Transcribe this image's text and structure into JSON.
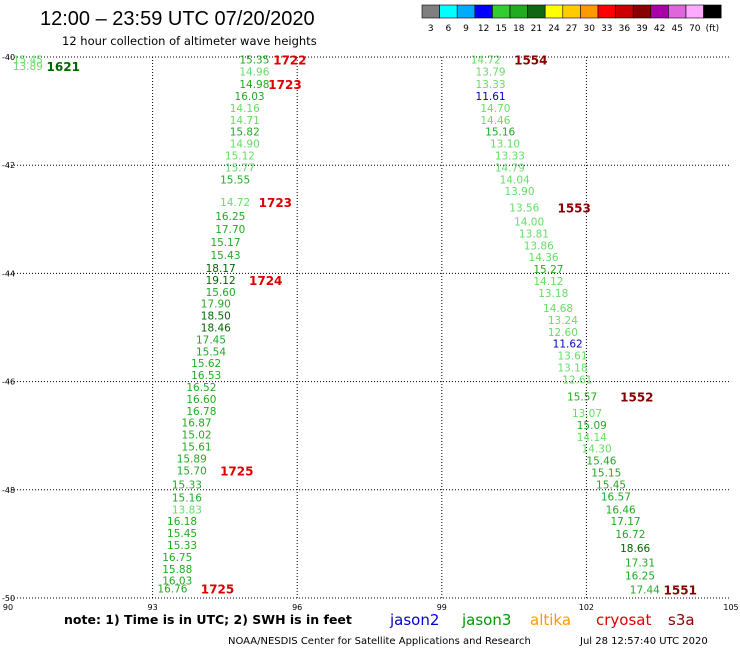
{
  "header": {
    "title": "12:00 – 23:59 UTC 07/20/2020",
    "subtitle": "12 hour collection of altimeter wave heights"
  },
  "colorbar": {
    "colors": [
      "#7f7f7f",
      "#00ffff",
      "#00aaff",
      "#0000ff",
      "#33cc33",
      "#22aa22",
      "#116611",
      "#ffff00",
      "#ffcc00",
      "#ff9900",
      "#ff0000",
      "#cc0000",
      "#880000",
      "#aa00aa",
      "#dd66dd",
      "#ffaaff",
      "#000000"
    ],
    "labels": [
      "3",
      "6",
      "9",
      "12",
      "15",
      "18",
      "21",
      "24",
      "27",
      "30",
      "33",
      "36",
      "39",
      "42",
      "45",
      "70",
      "(ft)"
    ]
  },
  "footer": {
    "note": "note: 1) Time is in UTC; 2) SWH is in feet",
    "missions": [
      {
        "name": "jason2",
        "color": "#0000cc"
      },
      {
        "name": "jason3",
        "color": "#009900"
      },
      {
        "name": "altika",
        "color": "#ff9900"
      },
      {
        "name": "cryosat",
        "color": "#dd0000"
      },
      {
        "name": "s3a",
        "color": "#880000"
      }
    ],
    "credit": "NOAA/NESDIS Center for Satellite Applications and Research",
    "timestamp": "Jul 28 12:57:40 UTC 2020"
  },
  "chart_data": {
    "type": "scatter",
    "xlim": [
      90,
      105
    ],
    "ylim": [
      -50,
      -40
    ],
    "xticks": [
      90,
      93,
      96,
      99,
      102,
      105
    ],
    "yticks": [
      -40,
      -42,
      -44,
      -46,
      -48,
      -50
    ],
    "grid": true,
    "track_colors": {
      "light": "#66dd66",
      "green": "#22aa22",
      "dark": "#006600",
      "blue": "#0000cc"
    },
    "tracks": [
      {
        "name": "west",
        "points": [
          {
            "lon": 90.1,
            "lat": -40.05,
            "v": "15.45",
            "c": "light"
          },
          {
            "lon": 90.1,
            "lat": -40.17,
            "v": "13.89",
            "c": "light"
          },
          {
            "lon": 94.8,
            "lat": -40.05,
            "v": "15.35",
            "c": "green"
          },
          {
            "lon": 94.8,
            "lat": -40.27,
            "v": "14.96",
            "c": "light"
          },
          {
            "lon": 94.8,
            "lat": -40.5,
            "v": "14.98",
            "c": "green"
          },
          {
            "lon": 94.7,
            "lat": -40.72,
            "v": "16.03",
            "c": "green"
          },
          {
            "lon": 94.6,
            "lat": -40.94,
            "v": "14.16",
            "c": "light"
          },
          {
            "lon": 94.6,
            "lat": -41.16,
            "v": "14.71",
            "c": "light"
          },
          {
            "lon": 94.6,
            "lat": -41.38,
            "v": "15.82",
            "c": "green"
          },
          {
            "lon": 94.6,
            "lat": -41.6,
            "v": "14.90",
            "c": "light"
          },
          {
            "lon": 94.5,
            "lat": -41.82,
            "v": "15.12",
            "c": "light"
          },
          {
            "lon": 94.5,
            "lat": -42.04,
            "v": "15.77",
            "c": "light"
          },
          {
            "lon": 94.4,
            "lat": -42.26,
            "v": "15.55",
            "c": "green"
          },
          {
            "lon": 94.4,
            "lat": -42.68,
            "v": "14.72",
            "c": "light"
          },
          {
            "lon": 94.3,
            "lat": -42.94,
            "v": "16.25",
            "c": "green"
          },
          {
            "lon": 94.3,
            "lat": -43.18,
            "v": "17.70",
            "c": "green"
          },
          {
            "lon": 94.2,
            "lat": -43.42,
            "v": "15.17",
            "c": "green"
          },
          {
            "lon": 94.2,
            "lat": -43.66,
            "v": "15.43",
            "c": "green"
          },
          {
            "lon": 94.1,
            "lat": -43.9,
            "v": "18.17",
            "c": "dark"
          },
          {
            "lon": 94.1,
            "lat": -44.12,
            "v": "19.12",
            "c": "dark"
          },
          {
            "lon": 94.1,
            "lat": -44.34,
            "v": "15.60",
            "c": "green"
          },
          {
            "lon": 94.0,
            "lat": -44.56,
            "v": "17.90",
            "c": "green"
          },
          {
            "lon": 94.0,
            "lat": -44.78,
            "v": "18.50",
            "c": "dark"
          },
          {
            "lon": 94.0,
            "lat": -45.0,
            "v": "18.46",
            "c": "dark"
          },
          {
            "lon": 93.9,
            "lat": -45.22,
            "v": "17.45",
            "c": "green"
          },
          {
            "lon": 93.9,
            "lat": -45.44,
            "v": "15.54",
            "c": "green"
          },
          {
            "lon": 93.8,
            "lat": -45.66,
            "v": "15.62",
            "c": "green"
          },
          {
            "lon": 93.8,
            "lat": -45.88,
            "v": "16.53",
            "c": "green"
          },
          {
            "lon": 93.7,
            "lat": -46.1,
            "v": "16.52",
            "c": "green"
          },
          {
            "lon": 93.7,
            "lat": -46.32,
            "v": "16.60",
            "c": "green"
          },
          {
            "lon": 93.7,
            "lat": -46.54,
            "v": "16.78",
            "c": "green"
          },
          {
            "lon": 93.6,
            "lat": -46.76,
            "v": "16.87",
            "c": "green"
          },
          {
            "lon": 93.6,
            "lat": -46.98,
            "v": "15.02",
            "c": "green"
          },
          {
            "lon": 93.6,
            "lat": -47.2,
            "v": "15.61",
            "c": "green"
          },
          {
            "lon": 93.5,
            "lat": -47.42,
            "v": "15.89",
            "c": "green"
          },
          {
            "lon": 93.5,
            "lat": -47.64,
            "v": "15.70",
            "c": "green"
          },
          {
            "lon": 93.4,
            "lat": -47.9,
            "v": "15.33",
            "c": "green"
          },
          {
            "lon": 93.4,
            "lat": -48.14,
            "v": "15.16",
            "c": "green"
          },
          {
            "lon": 93.4,
            "lat": -48.36,
            "v": "13.83",
            "c": "light"
          },
          {
            "lon": 93.3,
            "lat": -48.58,
            "v": "16.18",
            "c": "green"
          },
          {
            "lon": 93.3,
            "lat": -48.8,
            "v": "15.45",
            "c": "green"
          },
          {
            "lon": 93.3,
            "lat": -49.02,
            "v": "15.33",
            "c": "green"
          },
          {
            "lon": 93.2,
            "lat": -49.24,
            "v": "16.75",
            "c": "green"
          },
          {
            "lon": 93.2,
            "lat": -49.46,
            "v": "15.88",
            "c": "green"
          },
          {
            "lon": 93.2,
            "lat": -49.68,
            "v": "16.03",
            "c": "green"
          },
          {
            "lon": 93.1,
            "lat": -49.82,
            "v": "16.76",
            "c": "green"
          }
        ]
      },
      {
        "name": "east",
        "points": [
          {
            "lon": 99.6,
            "lat": -40.05,
            "v": "14.72",
            "c": "light"
          },
          {
            "lon": 99.7,
            "lat": -40.27,
            "v": "13.79",
            "c": "light"
          },
          {
            "lon": 99.7,
            "lat": -40.5,
            "v": "13.33",
            "c": "light"
          },
          {
            "lon": 99.7,
            "lat": -40.72,
            "v": "11.61",
            "c": "blue"
          },
          {
            "lon": 99.8,
            "lat": -40.94,
            "v": "14.70",
            "c": "light"
          },
          {
            "lon": 99.8,
            "lat": -41.16,
            "v": "14.46",
            "c": "light"
          },
          {
            "lon": 99.9,
            "lat": -41.38,
            "v": "15.16",
            "c": "green"
          },
          {
            "lon": 100.0,
            "lat": -41.6,
            "v": "13.10",
            "c": "light"
          },
          {
            "lon": 100.1,
            "lat": -41.82,
            "v": "13.33",
            "c": "light"
          },
          {
            "lon": 100.1,
            "lat": -42.04,
            "v": "14.79",
            "c": "light"
          },
          {
            "lon": 100.2,
            "lat": -42.26,
            "v": "14.04",
            "c": "light"
          },
          {
            "lon": 100.3,
            "lat": -42.48,
            "v": "13.90",
            "c": "light"
          },
          {
            "lon": 100.4,
            "lat": -42.78,
            "v": "13.56",
            "c": "light"
          },
          {
            "lon": 100.5,
            "lat": -43.04,
            "v": "14.00",
            "c": "light"
          },
          {
            "lon": 100.6,
            "lat": -43.26,
            "v": "13.81",
            "c": "light"
          },
          {
            "lon": 100.7,
            "lat": -43.48,
            "v": "13.86",
            "c": "light"
          },
          {
            "lon": 100.8,
            "lat": -43.7,
            "v": "14.36",
            "c": "light"
          },
          {
            "lon": 100.9,
            "lat": -43.92,
            "v": "15.27",
            "c": "green"
          },
          {
            "lon": 100.9,
            "lat": -44.14,
            "v": "14.12",
            "c": "light"
          },
          {
            "lon": 101.0,
            "lat": -44.36,
            "v": "13.18",
            "c": "light"
          },
          {
            "lon": 101.1,
            "lat": -44.64,
            "v": "14.68",
            "c": "light"
          },
          {
            "lon": 101.2,
            "lat": -44.86,
            "v": "13.24",
            "c": "light"
          },
          {
            "lon": 101.2,
            "lat": -45.08,
            "v": "12.60",
            "c": "light"
          },
          {
            "lon": 101.3,
            "lat": -45.3,
            "v": "11.62",
            "c": "blue"
          },
          {
            "lon": 101.4,
            "lat": -45.52,
            "v": "13.61",
            "c": "light"
          },
          {
            "lon": 101.4,
            "lat": -45.74,
            "v": "13.18",
            "c": "light"
          },
          {
            "lon": 101.5,
            "lat": -45.96,
            "v": "12.61",
            "c": "light"
          },
          {
            "lon": 101.6,
            "lat": -46.28,
            "v": "15.57",
            "c": "green"
          },
          {
            "lon": 101.7,
            "lat": -46.58,
            "v": "13.07",
            "c": "light"
          },
          {
            "lon": 101.8,
            "lat": -46.8,
            "v": "15.09",
            "c": "green"
          },
          {
            "lon": 101.8,
            "lat": -47.02,
            "v": "14.14",
            "c": "light"
          },
          {
            "lon": 101.9,
            "lat": -47.24,
            "v": "14.30",
            "c": "light"
          },
          {
            "lon": 102.0,
            "lat": -47.46,
            "v": "15.46",
            "c": "green"
          },
          {
            "lon": 102.1,
            "lat": -47.68,
            "v": "15.15",
            "c": "green"
          },
          {
            "lon": 102.2,
            "lat": -47.9,
            "v": "15.45",
            "c": "green"
          },
          {
            "lon": 102.3,
            "lat": -48.12,
            "v": "16.57",
            "c": "green"
          },
          {
            "lon": 102.4,
            "lat": -48.36,
            "v": "16.46",
            "c": "green"
          },
          {
            "lon": 102.5,
            "lat": -48.58,
            "v": "17.17",
            "c": "green"
          },
          {
            "lon": 102.6,
            "lat": -48.82,
            "v": "16.72",
            "c": "green"
          },
          {
            "lon": 102.7,
            "lat": -49.08,
            "v": "18.66",
            "c": "dark"
          },
          {
            "lon": 102.8,
            "lat": -49.34,
            "v": "17.31",
            "c": "green"
          },
          {
            "lon": 102.8,
            "lat": -49.58,
            "v": "16.25",
            "c": "green"
          },
          {
            "lon": 102.9,
            "lat": -49.84,
            "v": "17.44",
            "c": "green"
          }
        ]
      }
    ],
    "time_labels": [
      {
        "text": "1621",
        "lon": 90.8,
        "lat": -40.17,
        "color": "#006600"
      },
      {
        "text": "1722",
        "lon": 95.5,
        "lat": -40.05,
        "color": "#dd0000"
      },
      {
        "text": "1723",
        "lon": 95.4,
        "lat": -40.5,
        "color": "#dd0000"
      },
      {
        "text": "1723",
        "lon": 95.2,
        "lat": -42.68,
        "color": "#dd0000"
      },
      {
        "text": "1724",
        "lon": 95.0,
        "lat": -44.12,
        "color": "#dd0000"
      },
      {
        "text": "1725",
        "lon": 94.4,
        "lat": -47.64,
        "color": "#dd0000"
      },
      {
        "text": "1725",
        "lon": 94.0,
        "lat": -49.82,
        "color": "#dd0000"
      },
      {
        "text": "1554",
        "lon": 100.5,
        "lat": -40.05,
        "color": "#880000"
      },
      {
        "text": "1553",
        "lon": 101.4,
        "lat": -42.78,
        "color": "#880000"
      },
      {
        "text": "1552",
        "lon": 102.7,
        "lat": -46.28,
        "color": "#880000"
      },
      {
        "text": "1551",
        "lon": 103.6,
        "lat": -49.84,
        "color": "#880000"
      }
    ]
  }
}
